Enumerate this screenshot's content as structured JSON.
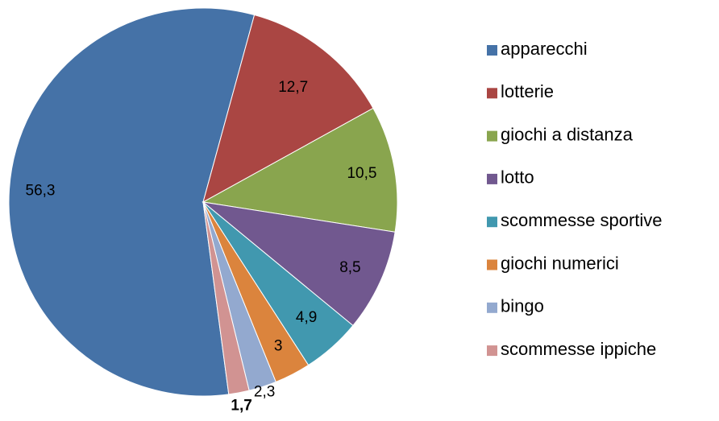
{
  "chart_data": {
    "type": "pie",
    "categories": [
      "apparecchi",
      "lotterie",
      "giochi a distanza",
      "lotto",
      "scommesse sportive",
      "giochi numerici",
      "bingo",
      "scommesse ippiche"
    ],
    "values": [
      56.3,
      12.7,
      10.5,
      8.5,
      4.9,
      3,
      2.3,
      1.7
    ],
    "value_labels": [
      "56,3",
      "12,7",
      "10,5",
      "8,5",
      "4,9",
      "3",
      "2,3",
      "1,7"
    ],
    "colors": [
      "#4572A7",
      "#AA4643",
      "#89A54E",
      "#71588F",
      "#4198AF",
      "#DB843D",
      "#93A9CF",
      "#D19392"
    ],
    "legend": "right"
  }
}
